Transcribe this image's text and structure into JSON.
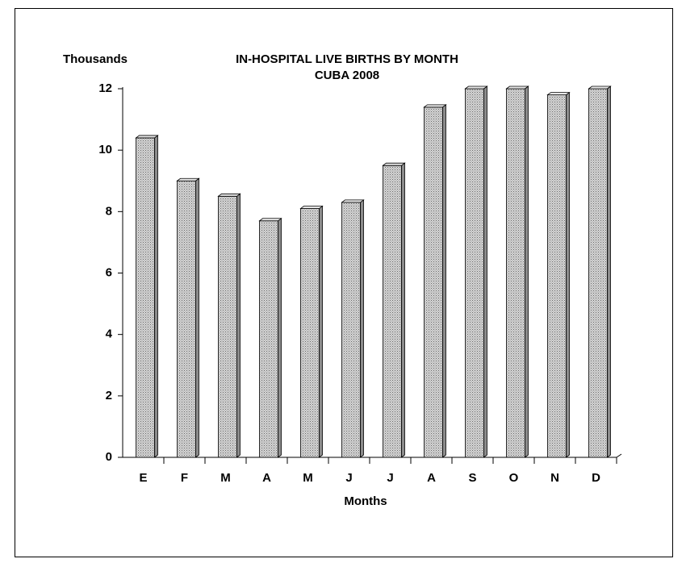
{
  "chart_data": {
    "type": "bar",
    "title": "IN-HOSPITAL LIVE BIRTHS BY MONTH",
    "subtitle": "CUBA 2008",
    "y_label": "Thousands",
    "x_label": "Months",
    "categories": [
      "E",
      "F",
      "M",
      "A",
      "M",
      "J",
      "J",
      "A",
      "S",
      "O",
      "N",
      "D"
    ],
    "values": [
      10.4,
      9.0,
      8.5,
      7.7,
      8.1,
      8.3,
      9.5,
      11.4,
      12.0,
      12.0,
      11.8,
      12.0
    ],
    "color": "#b8b8b8",
    "ylim": [
      0,
      12
    ],
    "yticks": [
      0,
      2,
      4,
      6,
      8,
      10,
      12
    ],
    "grid": false
  }
}
